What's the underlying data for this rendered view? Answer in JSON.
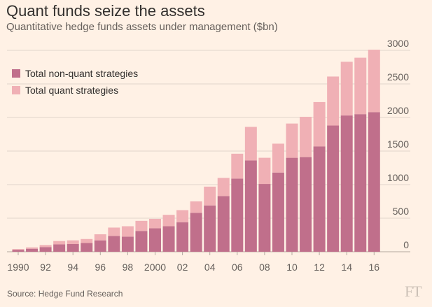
{
  "title": "Quant funds seize the assets",
  "subtitle": "Quantitative hedge funds assets under management ($bn)",
  "source": "Source: Hedge Fund Research",
  "logo": "FT",
  "colors": {
    "background": "#fff1e5",
    "non_quant": "#c06f8b",
    "quant": "#f0b0b5",
    "grid": "#e2d5ca",
    "text": "#66605c"
  },
  "chart_data": {
    "type": "bar",
    "stacked": true,
    "title": "Quant funds seize the assets",
    "subtitle": "Quantitative hedge funds assets under management ($bn)",
    "xlabel": "",
    "ylabel": "",
    "ylim": [
      0,
      3000
    ],
    "yticks": [
      0,
      500,
      1000,
      1500,
      2000,
      2500,
      3000
    ],
    "grid": true,
    "y_axis_position": "right",
    "legend_position": "top-left",
    "categories": [
      "1990",
      "1991",
      "1992",
      "1993",
      "1994",
      "1995",
      "1996",
      "1997",
      "1998",
      "1999",
      "2000",
      "2001",
      "2002",
      "2003",
      "2004",
      "2005",
      "2006",
      "2007",
      "2008",
      "2009",
      "2010",
      "2011",
      "2012",
      "2013",
      "2014",
      "2015",
      "2016"
    ],
    "x_tick_labels": [
      {
        "category": "1990",
        "label": "1990"
      },
      {
        "category": "1992",
        "label": "92"
      },
      {
        "category": "1994",
        "label": "94"
      },
      {
        "category": "1996",
        "label": "96"
      },
      {
        "category": "1998",
        "label": "98"
      },
      {
        "category": "2000",
        "label": "2000"
      },
      {
        "category": "2002",
        "label": "02"
      },
      {
        "category": "2004",
        "label": "04"
      },
      {
        "category": "2006",
        "label": "06"
      },
      {
        "category": "2008",
        "label": "08"
      },
      {
        "category": "2010",
        "label": "10"
      },
      {
        "category": "2012",
        "label": "12"
      },
      {
        "category": "2014",
        "label": "14"
      },
      {
        "category": "2016",
        "label": "16"
      }
    ],
    "series": [
      {
        "name": "Total non-quant strategies",
        "color": "#c06f8b",
        "values": [
          30,
          45,
          70,
          110,
          115,
          130,
          170,
          235,
          225,
          310,
          350,
          380,
          440,
          580,
          690,
          830,
          1090,
          1360,
          1010,
          1180,
          1400,
          1410,
          1570,
          1880,
          2030,
          2050,
          2080
        ]
      },
      {
        "name": "Total quant strategies",
        "color": "#f0b0b5",
        "values": [
          10,
          20,
          30,
          50,
          55,
          60,
          90,
          125,
          155,
          150,
          140,
          170,
          180,
          170,
          280,
          270,
          370,
          500,
          390,
          430,
          510,
          600,
          660,
          730,
          800,
          840,
          930
        ]
      }
    ]
  }
}
